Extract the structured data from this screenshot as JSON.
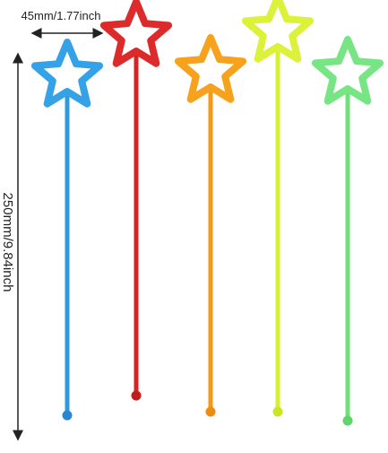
{
  "dimensions": {
    "width_label": "45mm/1.77inch",
    "length_label": "250mm/9.84inch"
  }
}
